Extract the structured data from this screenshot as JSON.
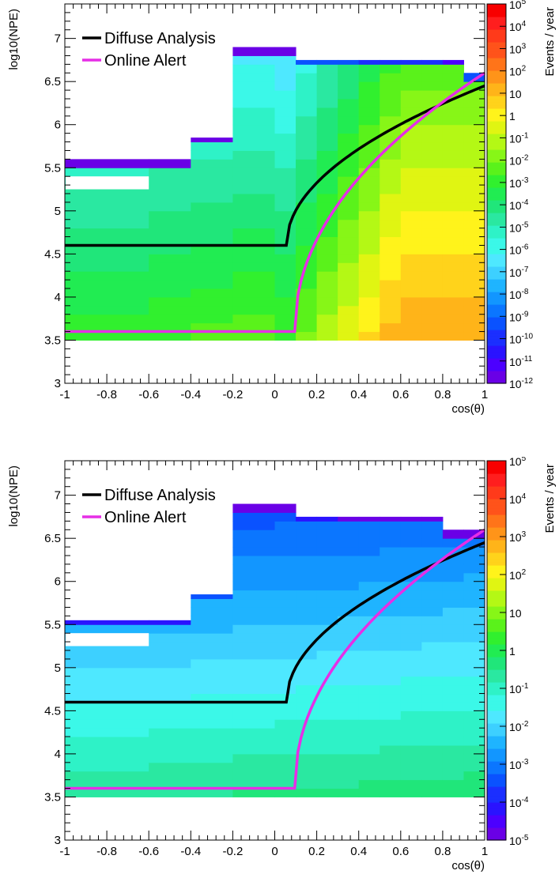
{
  "chart_data": [
    {
      "type": "heatmap",
      "xlabel": "cos(θ)",
      "ylabel": "log10(NPE)",
      "xlim": [
        -1,
        1
      ],
      "ylim": [
        3,
        7.4
      ],
      "x_ticks": [
        "-1",
        "-0.8",
        "-0.6",
        "-0.4",
        "-0.2",
        "0",
        "0.2",
        "0.4",
        "0.6",
        "0.8",
        "1"
      ],
      "y_ticks": [
        "3",
        "3.5",
        "4",
        "4.5",
        "5",
        "5.5",
        "6",
        "6.5",
        "7"
      ],
      "colorbar": {
        "title": "Events / year",
        "log_min": -12,
        "log_max": 5,
        "labels": [
          {
            "base": "10",
            "exp": "5",
            "v": 5
          },
          {
            "base": "10",
            "exp": "4",
            "v": 4
          },
          {
            "base": "10",
            "exp": "3",
            "v": 3
          },
          {
            "base": "10",
            "exp": "2",
            "v": 2
          },
          {
            "base": "10",
            "exp": "",
            "v": 1
          },
          {
            "base": "1",
            "exp": "",
            "v": 0
          },
          {
            "base": "10",
            "exp": "-1",
            "v": -1
          },
          {
            "base": "10",
            "exp": "-2",
            "v": -2
          },
          {
            "base": "10",
            "exp": "-3",
            "v": -3
          },
          {
            "base": "10",
            "exp": "-4",
            "v": -4
          },
          {
            "base": "10",
            "exp": "-5",
            "v": -5
          },
          {
            "base": "10",
            "exp": "-6",
            "v": -6
          },
          {
            "base": "10",
            "exp": "-7",
            "v": -7
          },
          {
            "base": "10",
            "exp": "-8",
            "v": -8
          },
          {
            "base": "10",
            "exp": "-9",
            "v": -9
          },
          {
            "base": "10",
            "exp": "-10",
            "v": -10
          },
          {
            "base": "10",
            "exp": "-11",
            "v": -11
          },
          {
            "base": "10",
            "exp": "-12",
            "v": -12
          }
        ]
      },
      "legend": [
        {
          "label": "Diffuse Analysis",
          "color": "#000000"
        },
        {
          "label": "Online Alert",
          "color": "#e62ee6"
        }
      ],
      "x_bins": [
        -1,
        -0.6,
        -0.4,
        -0.2,
        0,
        0.1,
        0.2,
        0.3,
        0.4,
        0.5,
        0.6,
        0.7,
        0.8,
        0.9,
        1
      ],
      "y_bins": [
        3.5,
        3.6,
        3.7,
        3.8,
        3.9,
        4.0,
        4.1,
        4.2,
        4.3,
        4.4,
        4.5,
        4.6,
        4.7,
        4.8,
        4.9,
        5.0,
        5.1,
        5.2,
        5.3,
        5.4,
        5.5,
        5.6,
        5.7,
        5.8,
        5.9,
        6.0,
        6.1,
        6.2,
        6.3,
        6.4,
        6.5,
        6.6,
        6.7,
        6.8,
        6.9
      ],
      "cell_color_rule": {
        "v0": -3.0,
        "slope_x": 7.5,
        "slope_y": -1.2,
        "max_x": 0.6,
        "y0": 3.5
      },
      "y_top_per_column": [
        5.6,
        5.6,
        5.85,
        6.9,
        6.9,
        6.75,
        6.75,
        6.75,
        6.75,
        6.75,
        6.75,
        6.75,
        6.75,
        6.6
      ],
      "top_row_values": [
        -12,
        -12,
        -12,
        -11.5,
        -11.5,
        -9.5,
        -9.5,
        -9.5,
        -10,
        -10,
        -10,
        -10,
        -11,
        -9.5
      ],
      "gap_rows": [
        {
          "x0": -1,
          "x1": -0.6,
          "y0": 5.25,
          "y1": 5.4
        }
      ],
      "curves": {
        "diffuse": {
          "x_start": -1,
          "x_break": 0.055,
          "y_flat": 4.6,
          "y_end": 6.45,
          "shape": 0.5
        },
        "alert": {
          "x_start": -1,
          "x_break": 0.095,
          "y_flat": 3.6,
          "y_end": 6.6,
          "shape": 0.48
        }
      }
    },
    {
      "type": "heatmap",
      "xlabel": "cos(θ)",
      "ylabel": "log10(NPE)",
      "xlim": [
        -1,
        1
      ],
      "ylim": [
        3,
        7.4
      ],
      "x_ticks": [
        "-1",
        "-0.8",
        "-0.6",
        "-0.4",
        "-0.2",
        "0",
        "0.2",
        "0.4",
        "0.6",
        "0.8",
        "1"
      ],
      "y_ticks": [
        "3",
        "3.5",
        "4",
        "4.5",
        "5",
        "5.5",
        "6",
        "6.5",
        "7"
      ],
      "colorbar": {
        "title": "Events / year",
        "log_min": -5,
        "log_max": 5,
        "labels": [
          {
            "base": "10",
            "exp": "5",
            "v": 5
          },
          {
            "base": "10",
            "exp": "4",
            "v": 4
          },
          {
            "base": "10",
            "exp": "3",
            "v": 3
          },
          {
            "base": "10",
            "exp": "2",
            "v": 2
          },
          {
            "base": "10",
            "exp": "",
            "v": 1
          },
          {
            "base": "1",
            "exp": "",
            "v": 0
          },
          {
            "base": "10",
            "exp": "-1",
            "v": -1
          },
          {
            "base": "10",
            "exp": "-2",
            "v": -2
          },
          {
            "base": "10",
            "exp": "-3",
            "v": -3
          },
          {
            "base": "10",
            "exp": "-4",
            "v": -4
          },
          {
            "base": "10",
            "exp": "-5",
            "v": -5
          }
        ]
      },
      "legend": [
        {
          "label": "Diffuse Analysis",
          "color": "#000000"
        },
        {
          "label": "Online Alert",
          "color": "#e62ee6"
        }
      ],
      "x_bins": [
        -1,
        -0.6,
        -0.4,
        -0.2,
        0,
        0.1,
        0.2,
        0.3,
        0.4,
        0.5,
        0.6,
        0.7,
        0.8,
        0.9,
        1
      ],
      "y_bins": [
        3.5,
        3.6,
        3.7,
        3.8,
        3.9,
        4.0,
        4.1,
        4.2,
        4.3,
        4.4,
        4.5,
        4.6,
        4.7,
        4.8,
        4.9,
        5.0,
        5.1,
        5.2,
        5.3,
        5.4,
        5.5,
        5.6,
        5.7,
        5.8,
        5.9,
        6.0,
        6.1,
        6.2,
        6.3,
        6.4,
        6.5,
        6.6,
        6.7,
        6.8,
        6.9
      ],
      "cell_color_rule": {
        "v0": -0.6,
        "slope_x": 0.4,
        "slope_y": -0.9,
        "max_x": 1.0,
        "y0": 3.5
      },
      "y_top_per_column": [
        5.55,
        5.55,
        5.85,
        6.9,
        6.9,
        6.75,
        6.75,
        6.75,
        6.75,
        6.75,
        6.75,
        6.75,
        6.6,
        6.6
      ],
      "top_row_values": [
        -4,
        -4,
        -3.5,
        -4.8,
        -4.8,
        -4.0,
        -4.3,
        -4.8,
        -4.8,
        -4.8,
        -4.8,
        -4.8,
        -4.8,
        -4.8
      ],
      "gap_rows": [
        {
          "x0": -1,
          "x1": -0.6,
          "y0": 5.25,
          "y1": 5.4
        }
      ],
      "curves": {
        "diffuse": {
          "x_start": -1,
          "x_break": 0.055,
          "y_flat": 4.6,
          "y_end": 6.45,
          "shape": 0.5
        },
        "alert": {
          "x_start": -1,
          "x_break": 0.095,
          "y_flat": 3.6,
          "y_end": 6.6,
          "shape": 0.48
        }
      }
    }
  ]
}
